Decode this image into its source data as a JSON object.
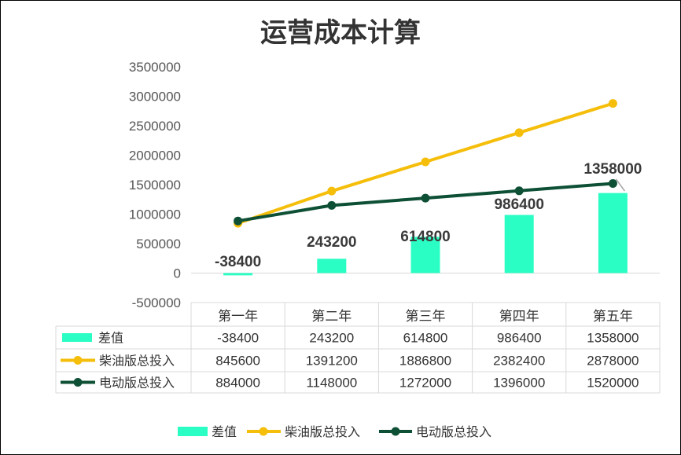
{
  "chart_data": {
    "type": "bar",
    "title": "运营成本计算",
    "categories": [
      "第一年",
      "第二年",
      "第三年",
      "第四年",
      "第五年"
    ],
    "y_ticks": [
      "3500000",
      "3000000",
      "2500000",
      "2000000",
      "1500000",
      "1000000",
      "500000",
      "0",
      "-500000"
    ],
    "ylim": [
      -500000,
      3500000
    ],
    "gridlines": false,
    "legend_position": "bottom",
    "data_table": true,
    "series": [
      {
        "name": "差值",
        "type": "bar",
        "color": "#2BFEC4",
        "values": [
          -38400,
          243200,
          614800,
          986400,
          1358000
        ],
        "display": [
          "-38400",
          "243200",
          "614800",
          "986400",
          "1358000"
        ]
      },
      {
        "name": "柴油版总投入",
        "type": "line",
        "color": "#F5BE0B",
        "values": [
          845600,
          1391200,
          1886800,
          2382400,
          2878000
        ],
        "display": [
          "845600",
          "1391200",
          "1886800",
          "2382400",
          "2878000"
        ]
      },
      {
        "name": "电动版总投入",
        "type": "line",
        "color": "#0E5036",
        "values": [
          884000,
          1148000,
          1272000,
          1396000,
          1520000
        ],
        "display": [
          "884000",
          "1148000",
          "1272000",
          "1396000",
          "1520000"
        ]
      }
    ],
    "data_labels": [
      "-38400",
      "243200",
      "614800",
      "986400",
      "1358000"
    ]
  }
}
